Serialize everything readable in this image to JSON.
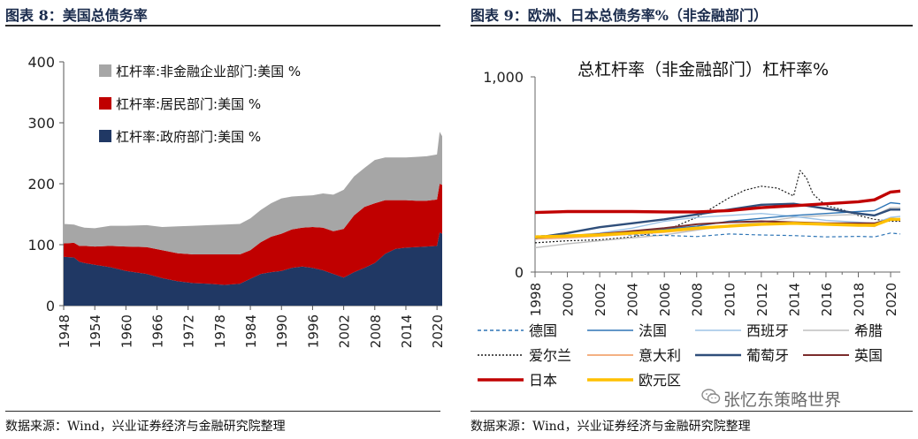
{
  "left_panel": {
    "title": "图表 8：美国总债务率",
    "source": "数据来源：Wind，兴业证券经济与金融研究院整理"
  },
  "right_panel": {
    "title": "图表 9：欧洲、日本总债务率%（非金融部门）",
    "source": "数据来源：Wind，兴业证券经济与金融研究院整理"
  },
  "watermark": {
    "text": "张忆东策略世界",
    "icon": "wechat-icon"
  },
  "colors": {
    "gov": "#203864",
    "household": "#C00000",
    "corporate": "#A6A6A6",
    "germany": "#2E75B6",
    "france": "#2E75B6",
    "spain": "#9DC3E6",
    "greece": "#BFBFBF",
    "ireland": "#1a1a1a",
    "italy": "#F4B183",
    "portugal": "#2F4E7A",
    "uk": "#7B2C2C",
    "japan": "#C00000",
    "euro": "#FFC000"
  },
  "chart_data": [
    {
      "type": "area",
      "stacked": true,
      "title": "",
      "ylim": [
        0,
        400
      ],
      "yticks": [
        "0",
        "100",
        "200",
        "300",
        "400"
      ],
      "xticks": [
        "1948",
        "1954",
        "1960",
        "1966",
        "1972",
        "1978",
        "1984",
        "1990",
        "1996",
        "2002",
        "2008",
        "2014",
        "2020"
      ],
      "xrange": [
        1948,
        2021
      ],
      "legend_position": "top-left",
      "x": [
        1948,
        1950,
        1951,
        1952,
        1954,
        1957,
        1960,
        1964,
        1967,
        1970,
        1973,
        1976,
        1979,
        1982,
        1984,
        1986,
        1988,
        1990,
        1992,
        1994,
        1996,
        1998,
        2000,
        2002,
        2004,
        2006,
        2008,
        2010,
        2012,
        2014,
        2016,
        2018,
        2020,
        2020.5,
        2021
      ],
      "series": [
        {
          "name": "杠杆率:政府部门:美国  %",
          "key": "gov",
          "values": [
            80,
            79,
            72,
            70,
            67,
            63,
            57,
            52,
            45,
            40,
            37,
            36,
            34,
            36,
            44,
            52,
            55,
            57,
            62,
            64,
            62,
            58,
            52,
            46,
            55,
            62,
            70,
            85,
            93,
            95,
            96,
            97,
            98,
            120,
            118
          ]
        },
        {
          "name": "杠杆率:居民部门:美国  %",
          "key": "household",
          "values": [
            22,
            24,
            26,
            28,
            30,
            35,
            40,
            44,
            46,
            46,
            47,
            48,
            50,
            48,
            47,
            52,
            58,
            61,
            63,
            64,
            67,
            70,
            70,
            80,
            93,
            100,
            98,
            88,
            80,
            78,
            76,
            75,
            76,
            80,
            80
          ]
        },
        {
          "name": "杠杆率:非金融企业部门:美国  %",
          "key": "corporate",
          "values": [
            32,
            30,
            32,
            30,
            30,
            33,
            34,
            36,
            38,
            44,
            47,
            48,
            49,
            50,
            52,
            53,
            55,
            58,
            54,
            52,
            52,
            56,
            60,
            64,
            64,
            64,
            71,
            70,
            70,
            70,
            72,
            73,
            74,
            85,
            80
          ]
        }
      ]
    },
    {
      "type": "line",
      "title": "总杠杆率（非金融部门）杠杆率%",
      "ylim": [
        0,
        1000
      ],
      "yticks": [
        "0",
        "1,000"
      ],
      "xticks": [
        "1998",
        "2000",
        "2002",
        "2004",
        "2006",
        "2008",
        "2010",
        "2012",
        "2014",
        "2016",
        "2018",
        "2020"
      ],
      "xrange": [
        1998,
        2020.6
      ],
      "legend_position": "bottom",
      "series": [
        {
          "name": "德国",
          "key": "germany",
          "dash": "4,3",
          "width": 1.2,
          "x": [
            1998,
            2000,
            2002,
            2004,
            2006,
            2008,
            2010,
            2012,
            2014,
            2016,
            2018,
            2019,
            2020,
            2020.6
          ],
          "values": [
            185,
            190,
            192,
            190,
            188,
            182,
            195,
            190,
            187,
            180,
            183,
            180,
            200,
            195
          ]
        },
        {
          "name": "法国",
          "key": "france",
          "dash": "",
          "width": 1.4,
          "x": [
            1998,
            2000,
            2002,
            2004,
            2006,
            2008,
            2010,
            2012,
            2014,
            2016,
            2018,
            2019,
            2020,
            2020.6
          ],
          "values": [
            180,
            185,
            195,
            205,
            220,
            235,
            260,
            275,
            290,
            300,
            310,
            315,
            355,
            350
          ]
        },
        {
          "name": "西班牙",
          "key": "spain",
          "dash": "",
          "width": 1.4,
          "x": [
            1998,
            2000,
            2002,
            2004,
            2006,
            2008,
            2010,
            2012,
            2014,
            2016,
            2018,
            2019,
            2020,
            2020.6
          ],
          "values": [
            170,
            185,
            200,
            225,
            260,
            280,
            290,
            300,
            285,
            265,
            255,
            250,
            280,
            285
          ]
        },
        {
          "name": "希腊",
          "key": "greece",
          "dash": "",
          "width": 1.4,
          "x": [
            1998,
            2000,
            2002,
            2004,
            2006,
            2008,
            2010,
            2012,
            2014,
            2016,
            2018,
            2019,
            2020,
            2020.6
          ],
          "values": [
            125,
            145,
            160,
            175,
            190,
            215,
            240,
            255,
            280,
            290,
            295,
            290,
            330,
            330
          ]
        },
        {
          "name": "爱尔兰",
          "key": "ireland",
          "dash": "2,2",
          "width": 1.2,
          "x": [
            1998,
            2000,
            2002,
            2004,
            2006,
            2008,
            2010,
            2011,
            2012,
            2013,
            2014,
            2014.4,
            2014.8,
            2015.2,
            2016,
            2017,
            2018,
            2019,
            2020,
            2020.6
          ],
          "values": [
            150,
            160,
            165,
            180,
            210,
            280,
            380,
            420,
            440,
            430,
            390,
            520,
            480,
            400,
            340,
            320,
            290,
            270,
            260,
            260
          ]
        },
        {
          "name": "意大利",
          "key": "italy",
          "dash": "",
          "width": 2,
          "x": [
            1998,
            2000,
            2002,
            2004,
            2006,
            2008,
            2010,
            2012,
            2014,
            2016,
            2018,
            2019,
            2020,
            2020.6
          ],
          "values": [
            170,
            175,
            185,
            195,
            205,
            220,
            235,
            245,
            250,
            245,
            240,
            235,
            275,
            270
          ]
        },
        {
          "name": "葡萄牙",
          "key": "portugal",
          "dash": "",
          "width": 2.4,
          "x": [
            1998,
            2000,
            2002,
            2004,
            2006,
            2008,
            2010,
            2012,
            2014,
            2016,
            2018,
            2019,
            2020,
            2020.6
          ],
          "values": [
            175,
            200,
            230,
            250,
            270,
            295,
            320,
            345,
            350,
            325,
            300,
            290,
            320,
            320
          ]
        },
        {
          "name": "英国",
          "key": "uk",
          "dash": "",
          "width": 2,
          "x": [
            1998,
            2000,
            2002,
            2004,
            2006,
            2008,
            2010,
            2012,
            2014,
            2016,
            2018,
            2019,
            2020,
            2020.6
          ],
          "values": [
            175,
            185,
            195,
            210,
            225,
            245,
            255,
            260,
            255,
            250,
            250,
            250,
            270,
            265
          ]
        },
        {
          "name": "日本",
          "key": "japan",
          "dash": "",
          "width": 3.4,
          "x": [
            1998,
            2000,
            2002,
            2004,
            2006,
            2008,
            2010,
            2012,
            2014,
            2016,
            2018,
            2019,
            2020,
            2020.6
          ],
          "values": [
            305,
            310,
            310,
            310,
            308,
            308,
            315,
            330,
            340,
            350,
            360,
            370,
            410,
            415
          ]
        },
        {
          "name": "欧元区",
          "key": "euro",
          "dash": "",
          "width": 3.4,
          "x": [
            1998,
            2000,
            2002,
            2004,
            2006,
            2008,
            2010,
            2012,
            2014,
            2016,
            2018,
            2019,
            2020,
            2020.6
          ],
          "values": [
            180,
            185,
            190,
            200,
            210,
            225,
            235,
            245,
            250,
            245,
            240,
            240,
            270,
            270
          ]
        }
      ]
    }
  ]
}
